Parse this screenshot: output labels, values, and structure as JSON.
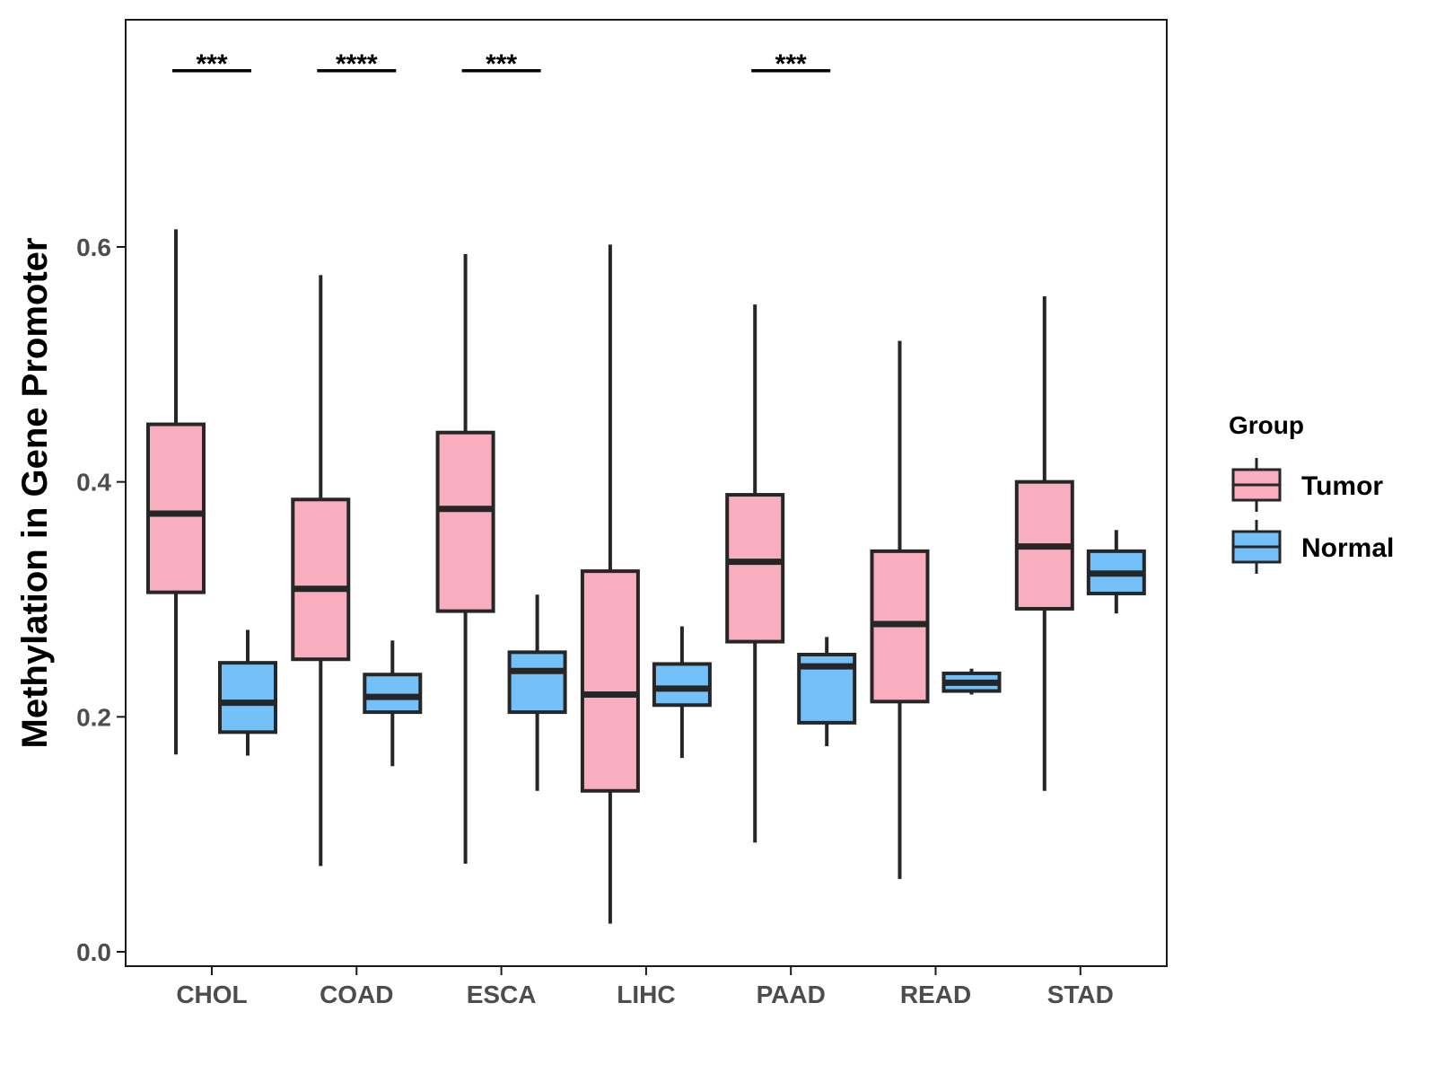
{
  "chart_data": {
    "type": "boxplot",
    "title": "",
    "xlabel": "",
    "ylabel": "Methylation in Gene Promoter",
    "ylim": [
      -0.02,
      0.79
    ],
    "yticks": [
      0.0,
      0.2,
      0.4,
      0.6
    ],
    "ytick_labels": [
      "0.0",
      "0.2",
      "0.4",
      "0.6"
    ],
    "categories": [
      "CHOL",
      "COAD",
      "ESCA",
      "LIHC",
      "PAAD",
      "READ",
      "STAD"
    ],
    "series": [
      {
        "name": "Tumor",
        "color": "#F9AEC0",
        "boxes": [
          {
            "min": 0.168,
            "q1": 0.306,
            "median": 0.373,
            "q3": 0.449,
            "max": 0.615
          },
          {
            "min": 0.073,
            "q1": 0.249,
            "median": 0.309,
            "q3": 0.385,
            "max": 0.576
          },
          {
            "min": 0.075,
            "q1": 0.29,
            "median": 0.377,
            "q3": 0.442,
            "max": 0.594
          },
          {
            "min": 0.024,
            "q1": 0.137,
            "median": 0.219,
            "q3": 0.324,
            "max": 0.602
          },
          {
            "min": 0.093,
            "q1": 0.264,
            "median": 0.332,
            "q3": 0.389,
            "max": 0.551
          },
          {
            "min": 0.062,
            "q1": 0.213,
            "median": 0.279,
            "q3": 0.341,
            "max": 0.52
          },
          {
            "min": 0.137,
            "q1": 0.292,
            "median": 0.345,
            "q3": 0.4,
            "max": 0.558
          }
        ]
      },
      {
        "name": "Normal",
        "color": "#74C0F9",
        "boxes": [
          {
            "min": 0.167,
            "q1": 0.187,
            "median": 0.212,
            "q3": 0.246,
            "max": 0.274
          },
          {
            "min": 0.158,
            "q1": 0.204,
            "median": 0.217,
            "q3": 0.236,
            "max": 0.265
          },
          {
            "min": 0.137,
            "q1": 0.204,
            "median": 0.239,
            "q3": 0.255,
            "max": 0.304
          },
          {
            "min": 0.165,
            "q1": 0.21,
            "median": 0.224,
            "q3": 0.245,
            "max": 0.277
          },
          {
            "min": 0.175,
            "q1": 0.195,
            "median": 0.243,
            "q3": 0.253,
            "max": 0.268
          },
          {
            "min": 0.219,
            "q1": 0.222,
            "median": 0.229,
            "q3": 0.237,
            "max": 0.241
          },
          {
            "min": 0.288,
            "q1": 0.305,
            "median": 0.322,
            "q3": 0.341,
            "max": 0.359
          }
        ]
      }
    ],
    "significance": [
      {
        "category": "CHOL",
        "label": "***",
        "y": 0.75
      },
      {
        "category": "COAD",
        "label": "****",
        "y": 0.75
      },
      {
        "category": "ESCA",
        "label": "***",
        "y": 0.75
      },
      {
        "category": "PAAD",
        "label": "***",
        "y": 0.75
      }
    ],
    "legend": {
      "title": "Group",
      "position": "right",
      "items": [
        {
          "label": "Tumor",
          "color": "#F9AEC0"
        },
        {
          "label": "Normal",
          "color": "#74C0F9"
        }
      ]
    },
    "grid": false
  }
}
